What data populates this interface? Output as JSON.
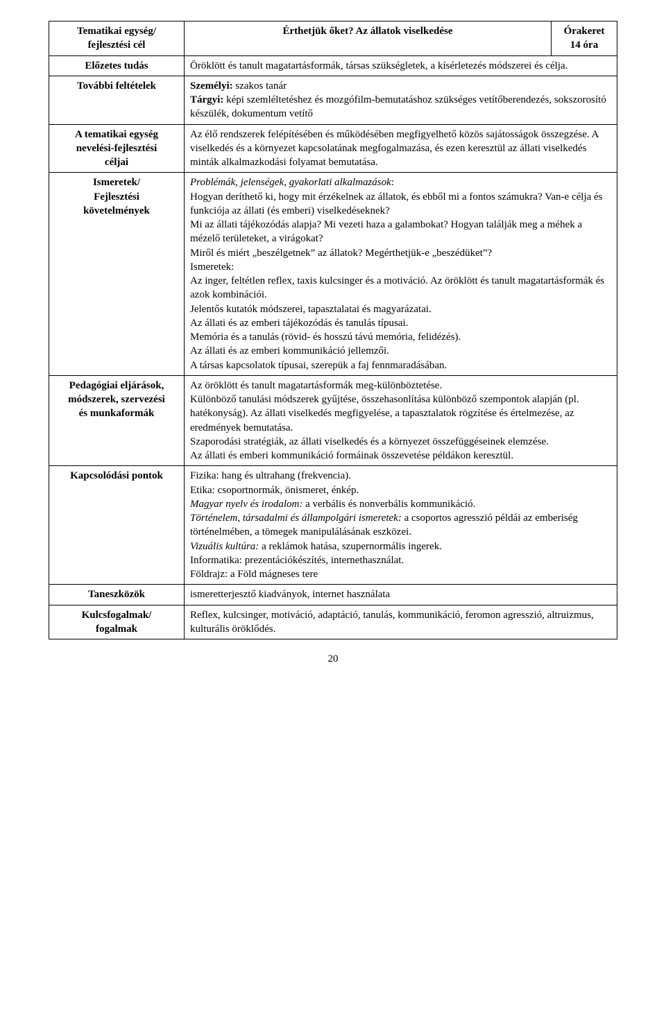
{
  "header": {
    "left_line1": "Tematikai egység/",
    "left_line2": "fejlesztési cél",
    "mid": "Érthetjük őket? Az állatok viselkedése",
    "right_line1": "Órakeret",
    "right_line2": "14 óra"
  },
  "rows": {
    "elozetes": {
      "label": "Előzetes tudás",
      "text": "Öröklött és tanult magatartásformák, társas szükségletek, a kísérletezés módszerei és célja."
    },
    "tovabbi": {
      "label": "További feltételek",
      "personal_label": "Személyi:",
      "personal_text": " szakos tanár",
      "targyi_label": "Tárgyi:",
      "targyi_text": " képi szemléltetéshez és mozgófilm-bemutatáshoz szükséges vetítőberendezés, sokszorosító készülék, dokumentum vetítő"
    },
    "tematikai": {
      "label_l1": "A tematikai egység",
      "label_l2": "nevelési-fejlesztési",
      "label_l3": "céljai",
      "text": "Az élő rendszerek felépítésében és működésében megfigyelhető közös sajátosságok összegzése. A viselkedés és a környezet kapcsolatának megfogalmazása, és ezen keresztül az állati viselkedés minták alkalmazkodási folyamat bemutatása."
    },
    "ismeretek": {
      "label_l1": "Ismeretek/",
      "label_l2": "Fejlesztési",
      "label_l3": "követelmények",
      "probl_label": "Problémák, jelenségek, gyakorlati alkalmazások",
      "p1": "Hogyan deríthető ki, hogy mit érzékelnek az állatok, és ebből mi a fontos számukra? Van-e célja és funkciója az állati (és emberi) viselkedéseknek?",
      "p2": "Mi az állati tájékozódás alapja? Mi vezeti haza a galambokat? Hogyan találják meg a méhek a mézelő területeket, a virágokat?",
      "p3": "Miről és miért „beszélgetnek” az állatok? Megérthetjük-e „beszédüket”?",
      "ism_label": "Ismeretek:",
      "i1": "Az inger, feltétlen reflex, taxis kulcsinger és a motiváció. Az öröklött és tanult magatartásformák és azok kombinációi.",
      "i2": "Jelentős kutatók módszerei, tapasztalatai és magyarázatai.",
      "i3": "Az állati és az emberi tájékozódás és tanulás típusai.",
      "i4": "Memória és a tanulás (rövid- és hosszú távú memória, felidézés).",
      "i5": "Az állati és az emberi kommunikáció jellemzői.",
      "i6": "A társas kapcsolatok típusai, szerepük a faj fennmaradásában."
    },
    "pedag": {
      "label_l1": "Pedagógiai eljárások,",
      "label_l2": "módszerek, szervezési",
      "label_l3": "és munkaformák",
      "p1": "Az öröklött és tanult magatartásformák meg-különböztetése.",
      "p2": "Különböző tanulási módszerek gyűjtése, összehasonlítása különböző szempontok alapján (pl. hatékonyság). Az állati viselkedés megfigyelése, a tapasztalatok rögzítése és értelmezése, az eredmények bemutatása.",
      "p3": "Szaporodási stratégiák, az állati viselkedés és a környezet összefüggéseinek elemzése.",
      "p4": "Az állati és emberi kommunikáció formáinak összevetése példákon keresztül."
    },
    "kapcs": {
      "label": "Kapcsolódási pontok",
      "l1": "Fizika: hang és ultrahang (frekvencia).",
      "l2": "Etika: csoportnormák, önismeret, énkép.",
      "l3a": "Magyar nyelv és irodalom:",
      "l3b": " a verbális és nonverbális kommunikáció.",
      "l4a": "Történelem, társadalmi és állampolgári ismeretek:",
      "l4b": " a csoportos agresszió példái az emberiség történelmében, a tömegek manipulálásának eszközei.",
      "l5a": "Vizuális kultúra:",
      "l5b": " a reklámok hatása, szupernormális ingerek.",
      "l6": "Informatika: prezentációkészítés, internethasználat.",
      "l7": "Földrajz: a  Föld mágneses tere"
    },
    "tanesz": {
      "label": "Taneszközök",
      "text": "ismeretterjesztő kiadványok, internet használata"
    },
    "kulcs": {
      "label_l1": "Kulcsfogalmak/",
      "label_l2": "fogalmak",
      "text": "Reflex, kulcsinger, motiváció, adaptáció, tanulás, kommunikáció, feromon agresszió, altruizmus, kulturális öröklődés."
    }
  },
  "pagenum": "20"
}
